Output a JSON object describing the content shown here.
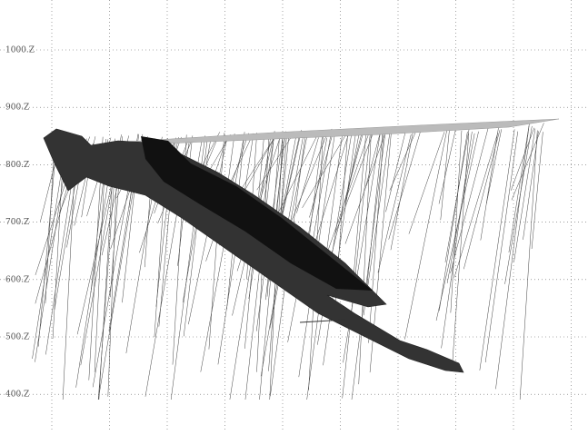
{
  "axis": {
    "labels": [
      "1000.Z",
      "900.Z",
      "800.Z",
      "700.Z",
      "600.Z",
      "500.Z",
      "400.Z"
    ]
  }
}
